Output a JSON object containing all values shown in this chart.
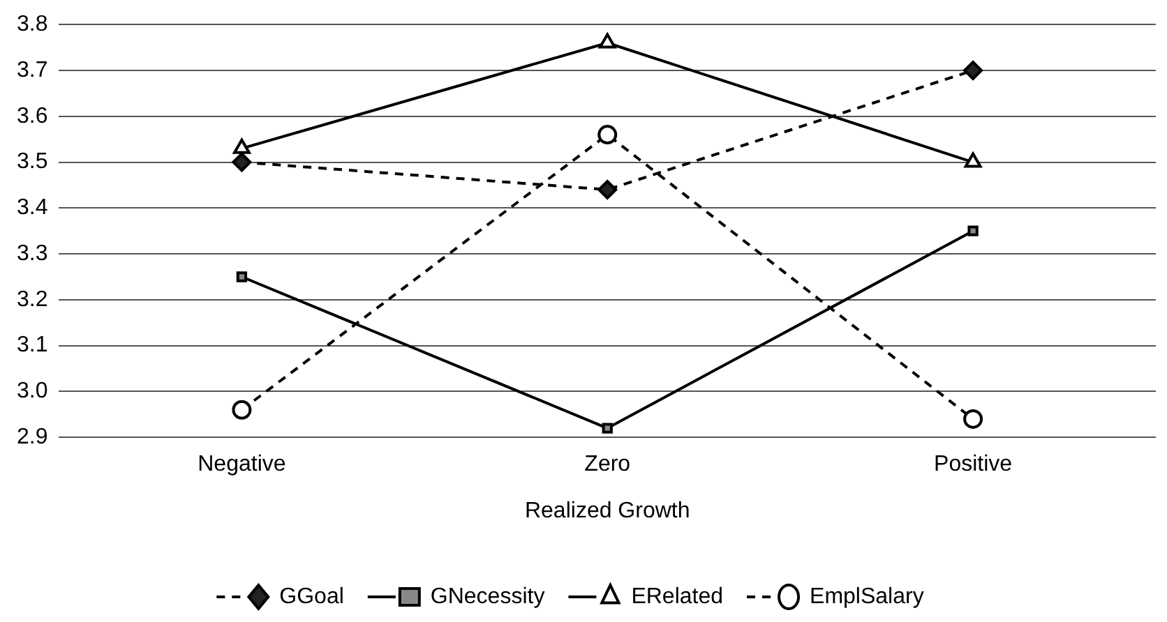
{
  "chart_data": {
    "type": "line",
    "xlabel": "Realized Growth",
    "categories": [
      "Negative",
      "Zero",
      "Positive"
    ],
    "series": [
      {
        "name": "GGoal",
        "color": "#000000",
        "values": [
          3.5,
          3.44,
          3.7
        ],
        "marker": "diamond",
        "line_style": "dashed"
      },
      {
        "name": "GNecessity",
        "color": "#000000",
        "values": [
          3.25,
          2.92,
          3.35
        ],
        "marker": "square",
        "line_style": "solid"
      },
      {
        "name": "ERelated",
        "color": "#000000",
        "values": [
          3.53,
          3.76,
          3.5
        ],
        "marker": "triangle",
        "line_style": "solid"
      },
      {
        "name": "EmplSalary",
        "color": "#000000",
        "values": [
          2.96,
          3.56,
          2.94
        ],
        "marker": "circle",
        "line_style": "dashed"
      }
    ],
    "ylim": [
      2.9,
      3.8
    ],
    "yticks": [
      {
        "value": 2.9,
        "label": "2.9"
      },
      {
        "value": 3.0,
        "label": "3.0"
      },
      {
        "value": 3.1,
        "label": "3.1"
      },
      {
        "value": 3.2,
        "label": "3.2"
      },
      {
        "value": 3.3,
        "label": "3.3"
      },
      {
        "value": 3.4,
        "label": "3.4"
      },
      {
        "value": 3.5,
        "label": "3.5"
      },
      {
        "value": 3.6,
        "label": "3.6"
      },
      {
        "value": 3.7,
        "label": "3.7"
      },
      {
        "value": 3.8,
        "label": "3.8"
      }
    ],
    "grid": "y",
    "legend": "bottom"
  }
}
